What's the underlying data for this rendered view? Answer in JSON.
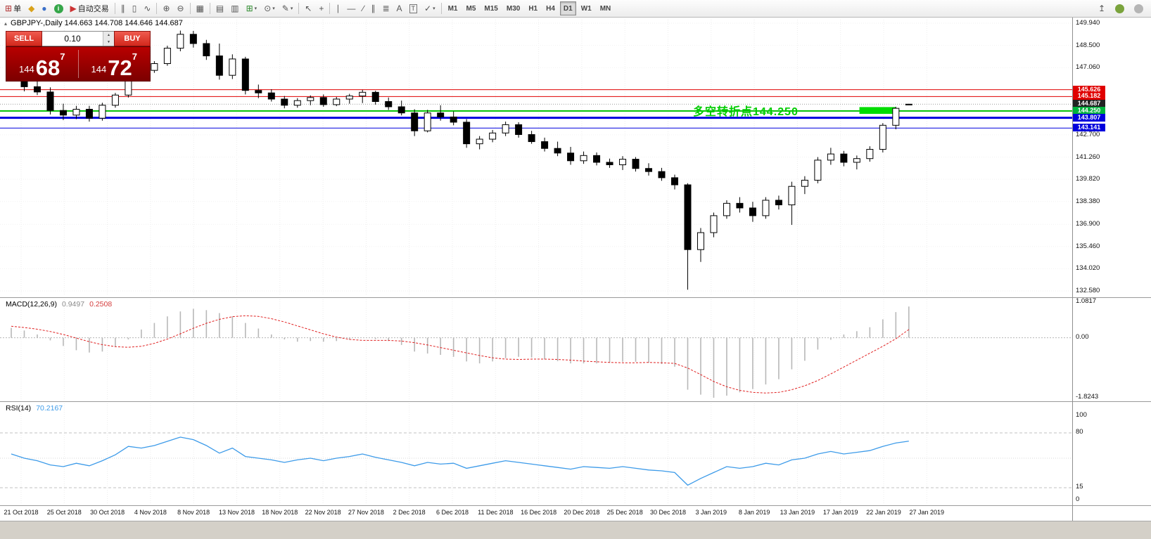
{
  "toolbar": {
    "dropdown_glyph": "▾",
    "items": [
      {
        "type": "glyph-label",
        "name": "new-order-button",
        "glyph": "⊞",
        "glyph_color": "#b03030",
        "label": "单"
      },
      {
        "type": "glyph",
        "name": "chart-window-icon",
        "glyph": "◆",
        "glyph_color": "#d9a21b"
      },
      {
        "type": "glyph",
        "name": "data-window-icon",
        "glyph": "●",
        "glyph_color": "#3a6fc9"
      },
      {
        "type": "dot",
        "name": "info-icon",
        "dot_label": "i",
        "color": "#35a649"
      },
      {
        "type": "glyph-label",
        "name": "auto-trading-button",
        "glyph": "▶",
        "glyph_color": "#cc3333",
        "label": "自动交易"
      },
      {
        "type": "sep"
      },
      {
        "type": "glyph",
        "name": "bar-chart-icon",
        "glyph": "∥"
      },
      {
        "type": "glyph",
        "name": "candlestick-chart-icon",
        "glyph": "▯"
      },
      {
        "type": "glyph",
        "name": "line-chart-icon",
        "glyph": "∿"
      },
      {
        "type": "sep"
      },
      {
        "type": "glyph",
        "name": "zoom-in-icon",
        "glyph": "⊕"
      },
      {
        "type": "glyph",
        "name": "zoom-out-icon",
        "glyph": "⊖"
      },
      {
        "type": "sep"
      },
      {
        "type": "glyph",
        "name": "tile-windows-icon",
        "glyph": "▦"
      },
      {
        "type": "sep"
      },
      {
        "type": "glyph",
        "name": "auto-arrange-icon",
        "glyph": "▤"
      },
      {
        "type": "glyph",
        "name": "cascade-windows-icon",
        "glyph": "▥"
      },
      {
        "type": "glyph",
        "name": "new-chart-button",
        "glyph": "⊞",
        "glyph_color": "#2e8b2e",
        "dropdown": true
      },
      {
        "type": "glyph",
        "name": "profiles-icon",
        "glyph": "⊙",
        "dropdown": true
      },
      {
        "type": "glyph",
        "name": "indicators-icon",
        "glyph": "✎",
        "dropdown": true
      },
      {
        "type": "sep"
      },
      {
        "type": "glyph",
        "name": "cursor-icon",
        "glyph": "↖"
      },
      {
        "type": "glyph",
        "name": "crosshair-icon",
        "glyph": "+"
      },
      {
        "type": "sep"
      },
      {
        "type": "glyph",
        "name": "vertical-line-icon",
        "glyph": "∣"
      },
      {
        "type": "glyph",
        "name": "horizontal-line-icon",
        "glyph": "—"
      },
      {
        "type": "glyph",
        "name": "trendline-icon",
        "glyph": "∕"
      },
      {
        "type": "glyph",
        "name": "equidistant-channel-icon",
        "glyph": "∥"
      },
      {
        "type": "glyph",
        "name": "fibonacci-icon",
        "glyph": "≣"
      },
      {
        "type": "glyph",
        "name": "text-icon",
        "glyph": "A"
      },
      {
        "type": "glyph",
        "name": "text-label-icon",
        "glyph": "T",
        "boxed": true
      },
      {
        "type": "glyph",
        "name": "arrows-icon",
        "glyph": "✓",
        "dropdown": true
      },
      {
        "type": "sep"
      }
    ],
    "timeframes": {
      "options": [
        "M1",
        "M5",
        "M15",
        "M30",
        "H1",
        "H4",
        "D1",
        "W1",
        "MN"
      ],
      "active": "D1"
    },
    "right_items": [
      {
        "type": "glyph",
        "name": "docking-icon",
        "glyph": "↥"
      },
      {
        "type": "dot",
        "name": "community-icon",
        "dot_label": "",
        "color": "#7aa33c"
      },
      {
        "type": "dot",
        "name": "support-icon",
        "dot_label": "",
        "color": "#b5b5b5"
      }
    ]
  },
  "chart": {
    "shift_marker": "▴",
    "title": "GBPJPY-,Daily 144.663 144.708 144.646 144.687",
    "annotation": {
      "text": "多空转折点144.250",
      "color": "#00cc00"
    },
    "trade_panel": {
      "sell_label": "SELL",
      "buy_label": "BUY",
      "volume": "0.10",
      "spin_up": "▲",
      "spin_down": "▼",
      "sell_price": {
        "small": "144",
        "big": "68",
        "sup": "7"
      },
      "buy_price": {
        "small": "144",
        "big": "72",
        "sup": "7"
      }
    },
    "y_axis_labels": [
      "149.940",
      "148.500",
      "147.060",
      "142.700",
      "141.260",
      "139.820",
      "138.380",
      "136.900",
      "135.460",
      "134.020",
      "132.580"
    ],
    "price_tags": [
      {
        "text": "145.626",
        "price": 145.626,
        "bg": "#e00000"
      },
      {
        "text": "145.182",
        "price": 145.182,
        "bg": "#e00000"
      },
      {
        "text": "144.687",
        "price": 144.687,
        "bg": "#222222"
      },
      {
        "text": "144.250",
        "price": 144.25,
        "bg": "#00b33c"
      },
      {
        "text": "143.807",
        "price": 143.807,
        "bg": "#0000dd"
      },
      {
        "text": "143.141",
        "price": 143.141,
        "bg": "#0000dd"
      }
    ],
    "levels": [
      {
        "price": 145.626,
        "color": "#e00000",
        "width": 1
      },
      {
        "price": 145.182,
        "color": "#e00000",
        "width": 1
      },
      {
        "price": 144.687,
        "color": "#999999",
        "width": 1,
        "dash": "1,2"
      },
      {
        "price": 144.25,
        "color": "#00c000",
        "width": 2
      },
      {
        "price": 143.807,
        "color": "#0000dd",
        "width": 3
      },
      {
        "price": 143.141,
        "color": "#0000dd",
        "width": 1
      }
    ],
    "highlight_box": {
      "start_index": 65.2,
      "end_index": 68.0,
      "price_top": 144.5,
      "price_bottom": 144.06,
      "color": "#00dd00"
    }
  },
  "macd_panel": {
    "name": "MACD(12,26,9)",
    "value_main": "0.9497",
    "value_signal": "0.2508",
    "axis_labels": [
      "1.0817",
      "0.00",
      "-1.8243"
    ],
    "histogram_color": "#b8b8b8",
    "signal_color": "#e02020"
  },
  "rsi_panel": {
    "name": "RSI(14)",
    "value": "70.2167",
    "axis_labels": [
      "100",
      "80",
      "15",
      "0"
    ],
    "levels": [
      80,
      50,
      15
    ],
    "line_color": "#3d9be9"
  },
  "time_axis": {
    "labels": [
      "21 Oct 2018",
      "25 Oct 2018",
      "30 Oct 2018",
      "4 Nov 2018",
      "8 Nov 2018",
      "13 Nov 2018",
      "18 Nov 2018",
      "22 Nov 2018",
      "27 Nov 2018",
      "2 Dec 2018",
      "6 Dec 2018",
      "11 Dec 2018",
      "16 Dec 2018",
      "20 Dec 2018",
      "25 Dec 2018",
      "30 Dec 2018",
      "3 Jan 2019",
      "8 Jan 2019",
      "13 Jan 2019",
      "17 Jan 2019",
      "22 Jan 2019",
      "27 Jan 2019"
    ]
  },
  "chart_data": {
    "type": "candlestick",
    "symbol": "GBPJPY-",
    "timeframe": "Daily",
    "title": "GBPJPY-,Daily",
    "ylim": [
      132.58,
      149.94
    ],
    "candles": [
      [
        "2018.10.22",
        146.86,
        147.12,
        146.5,
        146.72
      ],
      [
        "2018.10.23",
        146.72,
        146.88,
        145.52,
        145.82
      ],
      [
        "2018.10.24",
        145.82,
        146.32,
        145.28,
        145.48
      ],
      [
        "2018.10.25",
        145.48,
        145.78,
        144.02,
        144.28
      ],
      [
        "2018.10.26",
        144.28,
        144.72,
        143.66,
        143.98
      ],
      [
        "2018.10.29",
        143.98,
        144.58,
        143.72,
        144.36
      ],
      [
        "2018.10.30",
        144.36,
        144.58,
        143.56,
        143.78
      ],
      [
        "2018.10.31",
        143.78,
        144.78,
        143.62,
        144.62
      ],
      [
        "2018.11.01",
        144.62,
        145.42,
        144.46,
        145.28
      ],
      [
        "2018.11.02",
        145.28,
        147.28,
        145.12,
        147.08
      ],
      [
        "2018.11.05",
        147.08,
        147.32,
        146.56,
        146.88
      ],
      [
        "2018.11.06",
        146.88,
        147.48,
        146.72,
        147.32
      ],
      [
        "2018.11.07",
        147.32,
        148.48,
        147.18,
        148.32
      ],
      [
        "2018.11.08",
        148.32,
        149.46,
        148.12,
        149.22
      ],
      [
        "2018.11.09",
        149.22,
        149.44,
        148.36,
        148.62
      ],
      [
        "2018.11.12",
        148.62,
        148.86,
        147.56,
        147.82
      ],
      [
        "2018.11.13",
        147.82,
        148.62,
        146.28,
        146.56
      ],
      [
        "2018.11.14",
        146.56,
        147.92,
        146.32,
        147.62
      ],
      [
        "2018.11.15",
        147.62,
        147.76,
        145.32,
        145.58
      ],
      [
        "2018.11.16",
        145.58,
        145.96,
        145.08,
        145.42
      ],
      [
        "2018.11.19",
        145.42,
        145.66,
        144.86,
        145.02
      ],
      [
        "2018.11.20",
        145.02,
        145.22,
        144.42,
        144.62
      ],
      [
        "2018.11.21",
        144.62,
        145.08,
        144.46,
        144.92
      ],
      [
        "2018.11.22",
        144.92,
        145.26,
        144.62,
        145.12
      ],
      [
        "2018.11.23",
        145.12,
        145.32,
        144.52,
        144.66
      ],
      [
        "2018.11.26",
        144.66,
        145.16,
        144.56,
        145.02
      ],
      [
        "2018.11.27",
        145.02,
        145.36,
        144.72,
        145.22
      ],
      [
        "2018.11.28",
        145.22,
        145.62,
        144.76,
        145.46
      ],
      [
        "2018.11.29",
        145.46,
        145.56,
        144.66,
        144.86
      ],
      [
        "2018.11.30",
        144.86,
        145.12,
        144.32,
        144.52
      ],
      [
        "2018.12.03",
        144.52,
        144.92,
        143.96,
        144.12
      ],
      [
        "2018.12.04",
        144.12,
        144.36,
        142.62,
        142.96
      ],
      [
        "2018.12.05",
        142.96,
        144.32,
        142.86,
        144.12
      ],
      [
        "2018.12.06",
        144.12,
        144.62,
        143.62,
        143.86
      ],
      [
        "2018.12.07",
        143.86,
        144.22,
        143.32,
        143.52
      ],
      [
        "2018.12.10",
        143.52,
        143.72,
        141.86,
        142.12
      ],
      [
        "2018.12.11",
        142.12,
        142.62,
        141.76,
        142.42
      ],
      [
        "2018.12.12",
        142.42,
        143.02,
        142.22,
        142.82
      ],
      [
        "2018.12.13",
        142.82,
        143.56,
        142.62,
        143.36
      ],
      [
        "2018.12.14",
        143.36,
        143.52,
        142.52,
        142.72
      ],
      [
        "2018.12.17",
        142.72,
        142.96,
        142.12,
        142.26
      ],
      [
        "2018.12.18",
        142.26,
        142.52,
        141.62,
        141.82
      ],
      [
        "2018.12.19",
        141.82,
        142.26,
        141.32,
        141.52
      ],
      [
        "2018.12.20",
        141.52,
        141.92,
        140.76,
        141.02
      ],
      [
        "2018.12.21",
        141.02,
        141.62,
        140.82,
        141.36
      ],
      [
        "2018.12.24",
        141.36,
        141.56,
        140.72,
        140.92
      ],
      [
        "2018.12.25",
        140.92,
        141.16,
        140.56,
        140.76
      ],
      [
        "2018.12.26",
        140.76,
        141.32,
        140.42,
        141.12
      ],
      [
        "2018.12.27",
        141.12,
        141.26,
        140.32,
        140.52
      ],
      [
        "2018.12.28",
        140.52,
        140.86,
        140.06,
        140.32
      ],
      [
        "2018.12.31",
        140.32,
        140.56,
        139.72,
        139.92
      ],
      [
        "2019.01.02",
        139.92,
        140.12,
        139.16,
        139.46
      ],
      [
        "2019.01.03",
        139.46,
        139.56,
        132.66,
        135.26
      ],
      [
        "2019.01.04",
        135.26,
        136.66,
        134.46,
        136.36
      ],
      [
        "2019.01.07",
        136.36,
        137.66,
        136.06,
        137.46
      ],
      [
        "2019.01.08",
        137.46,
        138.46,
        137.26,
        138.26
      ],
      [
        "2019.01.09",
        138.26,
        138.66,
        137.66,
        137.96
      ],
      [
        "2019.01.10",
        137.96,
        138.36,
        137.06,
        137.46
      ],
      [
        "2019.01.11",
        137.46,
        138.66,
        137.26,
        138.46
      ],
      [
        "2019.01.14",
        138.46,
        138.76,
        137.86,
        138.16
      ],
      [
        "2019.01.15",
        138.16,
        139.66,
        136.86,
        139.36
      ],
      [
        "2019.01.16",
        139.36,
        140.02,
        138.86,
        139.76
      ],
      [
        "2019.01.17",
        139.76,
        141.26,
        139.56,
        141.06
      ],
      [
        "2019.01.18",
        141.06,
        141.86,
        140.76,
        141.46
      ],
      [
        "2019.01.21",
        141.46,
        141.66,
        140.66,
        140.92
      ],
      [
        "2019.01.22",
        140.92,
        141.36,
        140.46,
        141.16
      ],
      [
        "2019.01.23",
        141.16,
        141.96,
        140.96,
        141.76
      ],
      [
        "2019.01.24",
        141.76,
        143.46,
        141.56,
        143.32
      ],
      [
        "2019.01.25",
        143.32,
        144.52,
        143.06,
        144.42
      ],
      [
        "2019.01.28",
        144.663,
        144.708,
        144.646,
        144.687
      ]
    ],
    "macd": {
      "type": "bar",
      "ylim": [
        -1.8243,
        1.0817
      ],
      "histogram": [
        0.3,
        0.22,
        0.1,
        -0.08,
        -0.25,
        -0.38,
        -0.45,
        -0.42,
        -0.28,
        -0.05,
        0.25,
        0.45,
        0.65,
        0.8,
        0.88,
        0.84,
        0.75,
        0.65,
        0.45,
        0.28,
        0.1,
        -0.05,
        -0.12,
        -0.1,
        -0.12,
        -0.1,
        -0.06,
        0.0,
        -0.04,
        -0.1,
        -0.22,
        -0.42,
        -0.48,
        -0.52,
        -0.58,
        -0.72,
        -0.78,
        -0.72,
        -0.62,
        -0.58,
        -0.6,
        -0.66,
        -0.71,
        -0.78,
        -0.78,
        -0.78,
        -0.76,
        -0.73,
        -0.73,
        -0.76,
        -0.8,
        -0.88,
        -1.58,
        -1.73,
        -1.8243,
        -1.76,
        -1.66,
        -1.56,
        -1.42,
        -1.26,
        -0.96,
        -0.7,
        -0.36,
        -0.06,
        0.1,
        0.2,
        0.32,
        0.56,
        0.78,
        0.9497
      ],
      "signal": [
        0.35,
        0.31,
        0.26,
        0.19,
        0.1,
        -0.01,
        -0.12,
        -0.21,
        -0.27,
        -0.29,
        -0.26,
        -0.17,
        -0.04,
        0.12,
        0.29,
        0.44,
        0.56,
        0.64,
        0.67,
        0.65,
        0.58,
        0.48,
        0.36,
        0.24,
        0.12,
        0.02,
        -0.05,
        -0.08,
        -0.08,
        -0.08,
        -0.1,
        -0.15,
        -0.22,
        -0.3,
        -0.38,
        -0.46,
        -0.54,
        -0.61,
        -0.65,
        -0.66,
        -0.65,
        -0.65,
        -0.66,
        -0.68,
        -0.71,
        -0.73,
        -0.75,
        -0.76,
        -0.76,
        -0.75,
        -0.76,
        -0.78,
        -0.92,
        -1.12,
        -1.33,
        -1.49,
        -1.6,
        -1.66,
        -1.68,
        -1.66,
        -1.58,
        -1.46,
        -1.3,
        -1.1,
        -0.89,
        -0.68,
        -0.47,
        -0.26,
        -0.03,
        0.2508
      ]
    },
    "rsi": {
      "type": "line",
      "ylim": [
        0,
        100
      ],
      "values": [
        55,
        50,
        47,
        42,
        40,
        44,
        41,
        47,
        54,
        64,
        62,
        65,
        70,
        75,
        72,
        65,
        56,
        62,
        52,
        50,
        48,
        45,
        48,
        50,
        47,
        50,
        52,
        55,
        51,
        48,
        45,
        41,
        45,
        43,
        44,
        38,
        41,
        44,
        47,
        45,
        43,
        41,
        39,
        37,
        40,
        39,
        38,
        40,
        38,
        36,
        35,
        33,
        18,
        26,
        33,
        40,
        38,
        40,
        44,
        42,
        48,
        50,
        55,
        58,
        55,
        57,
        59,
        64,
        68,
        70.2167
      ]
    }
  }
}
